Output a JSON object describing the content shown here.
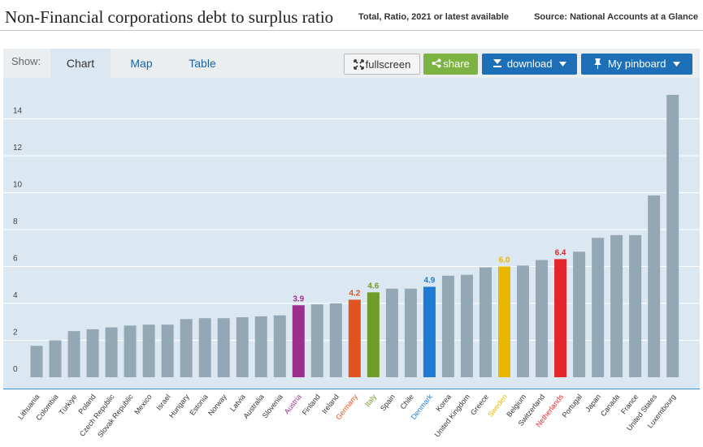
{
  "header": {
    "title": "Non-Financial corporations debt to surplus ratio",
    "subtitle": "Total, Ratio, 2021 or latest available",
    "source": "Source: National Accounts at a Glance"
  },
  "tabs": {
    "show_label": "Show:",
    "items": [
      "Chart",
      "Map",
      "Table"
    ]
  },
  "buttons": {
    "fullscreen": "fullscreen",
    "share": "share",
    "download": "download",
    "pinboard": "My pinboard"
  },
  "icons": {
    "fullscreen": "expand-arrows-icon",
    "share": "share-icon",
    "download": "download-arrow-icon",
    "pinboard": "pushpin-icon",
    "dropdown": "caret-down-icon"
  },
  "colors": {
    "default_bar": "#94a7b4",
    "plot_bg": "#dbe8f1",
    "austria": "#9c2e8c",
    "germany": "#e0541e",
    "italy": "#6f9c2a",
    "denmark": "#1f7bd1",
    "sweden": "#e8b800",
    "netherlands": "#e3262c"
  },
  "chart_data": {
    "type": "bar",
    "title": "Non-Financial corporations debt to surplus ratio",
    "xlabel": "",
    "ylabel": "",
    "ylim": [
      0,
      15.5
    ],
    "yticks": [
      0,
      2,
      4,
      6,
      8,
      10,
      12,
      14
    ],
    "grid": true,
    "categories": [
      "Lithuania",
      "Colombia",
      "Türkiye",
      "Poland",
      "Czech Republic",
      "Slovak Republic",
      "Mexico",
      "Israel",
      "Hungary",
      "Estonia",
      "Norway",
      "Latvia",
      "Australia",
      "Slovenia",
      "Austria",
      "Finland",
      "Ireland",
      "Germany",
      "Italy",
      "Spain",
      "Chile",
      "Denmark",
      "Korea",
      "United Kingdom",
      "Greece",
      "Sweden",
      "Belgium",
      "Switzerland",
      "Netherlands",
      "Portugal",
      "Japan",
      "Canada",
      "France",
      "United States",
      "Luxembourg"
    ],
    "values": [
      1.7,
      2.0,
      2.5,
      2.6,
      2.7,
      2.8,
      2.85,
      2.85,
      3.15,
      3.2,
      3.2,
      3.25,
      3.3,
      3.35,
      3.9,
      3.95,
      4.0,
      4.2,
      4.6,
      4.8,
      4.8,
      4.9,
      5.5,
      5.55,
      5.95,
      6.0,
      6.05,
      6.35,
      6.4,
      6.8,
      7.55,
      7.7,
      7.7,
      9.85,
      15.3
    ],
    "highlights": [
      {
        "country": "Austria",
        "label": "3.9",
        "color": "#9c2e8c"
      },
      {
        "country": "Germany",
        "label": "4.2",
        "color": "#e0541e"
      },
      {
        "country": "Italy",
        "label": "4.6",
        "color": "#6f9c2a"
      },
      {
        "country": "Denmark",
        "label": "4.9",
        "color": "#1f7bd1"
      },
      {
        "country": "Sweden",
        "label": "6.0",
        "color": "#e8b800"
      },
      {
        "country": "Netherlands",
        "label": "6.4",
        "color": "#e3262c"
      }
    ]
  }
}
